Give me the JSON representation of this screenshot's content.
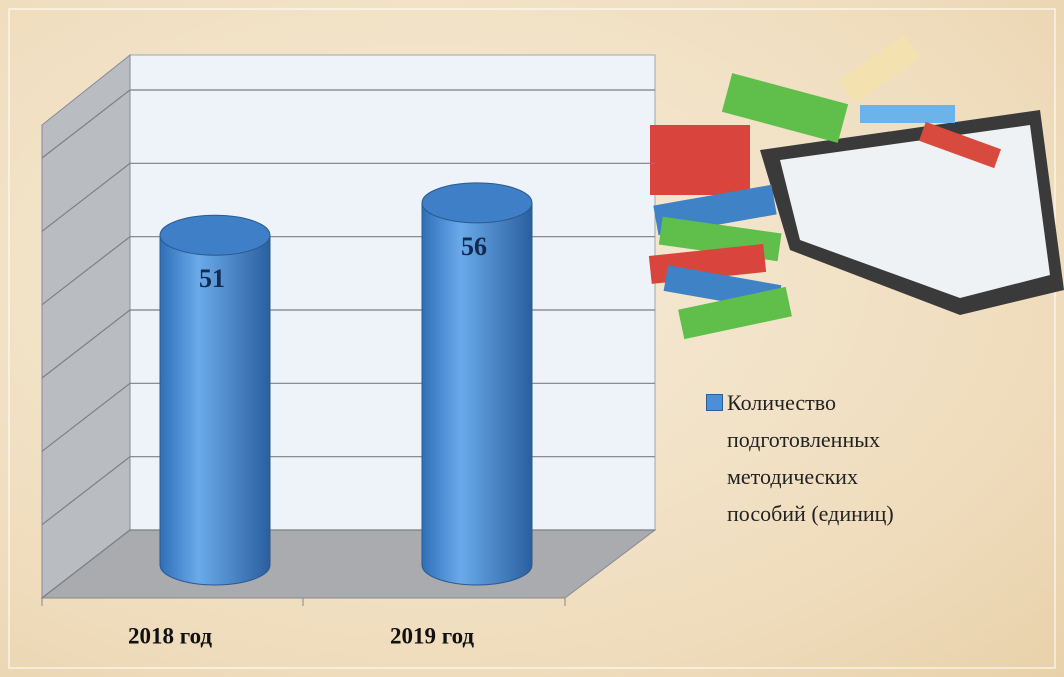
{
  "chart_data": {
    "type": "bar3d-cylinder",
    "categories": [
      "2018 год",
      "2019 год"
    ],
    "series": [
      {
        "name": "Количество подготовленных методических пособий (единиц)",
        "color": "#4a8fd8",
        "values": [
          51,
          56
        ]
      }
    ],
    "ylim": [
      0,
      60
    ],
    "yticks": [
      0,
      10,
      20,
      30,
      40,
      50,
      60
    ],
    "grid": true,
    "legend": "right"
  }
}
